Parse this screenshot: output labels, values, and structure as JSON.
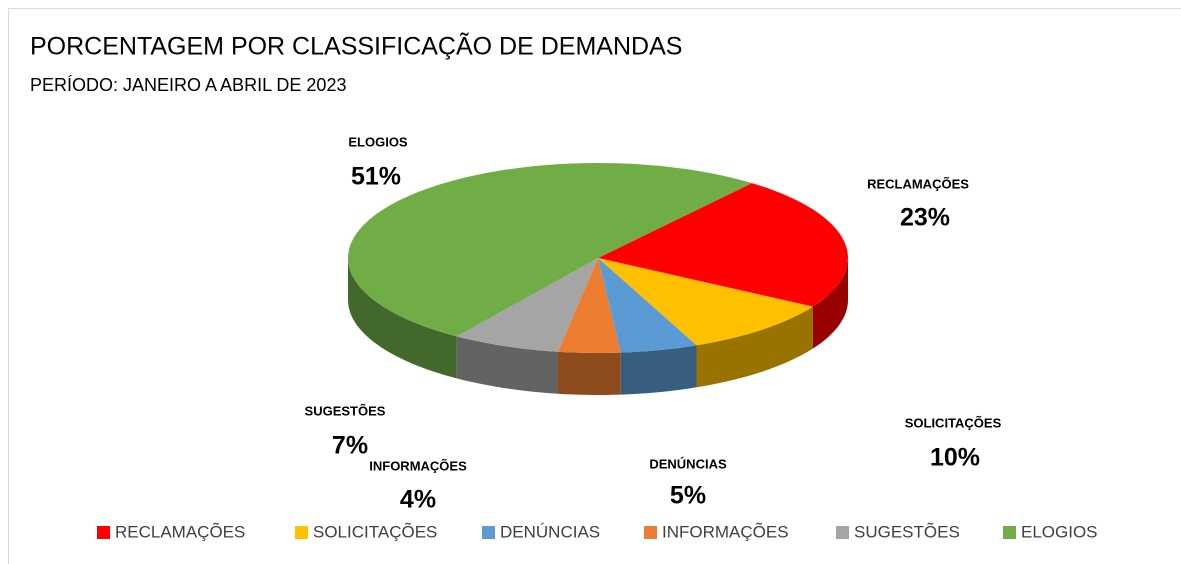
{
  "chart_data": {
    "type": "pie3d",
    "title": "PORCENTAGEM POR CLASSIFICAÇÃO DE DEMANDAS",
    "subtitle": "PERÍODO: JANEIRO  A ABRIL DE 2023",
    "categories": [
      "RECLAMAÇÕES",
      "SOLICITAÇÕES",
      "DENÚNCIAS",
      "INFORMAÇÕES",
      "SUGESTÕES",
      "ELOGIOS"
    ],
    "values": [
      23,
      10,
      5,
      4,
      7,
      51
    ],
    "value_labels": [
      "23%",
      "10%",
      "5%",
      "4%",
      "7%",
      "51%"
    ],
    "colors": [
      "#FF0000",
      "#FFC000",
      "#5B9BD5",
      "#ED7D31",
      "#A5A5A5",
      "#70AD47"
    ],
    "legend": "bottom"
  }
}
